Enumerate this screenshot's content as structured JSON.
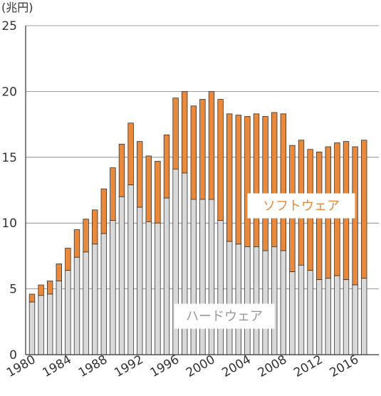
{
  "chart_data": {
    "type": "bar",
    "stacked": true,
    "unit_label": "(兆円)",
    "x": [
      1980,
      1981,
      1982,
      1983,
      1984,
      1985,
      1986,
      1987,
      1988,
      1989,
      1990,
      1991,
      1992,
      1993,
      1994,
      1995,
      1996,
      1997,
      1998,
      1999,
      2000,
      2001,
      2002,
      2003,
      2004,
      2005,
      2006,
      2007,
      2008,
      2009,
      2010,
      2011,
      2012,
      2013,
      2014,
      2015,
      2016,
      2017
    ],
    "x_tick_labels": [
      "1980",
      "1984",
      "1988",
      "1992",
      "1996",
      "2000",
      "2004",
      "2008",
      "2012",
      "2016"
    ],
    "y_ticks": [
      0,
      5,
      10,
      15,
      20,
      25
    ],
    "ylim": [
      0,
      25
    ],
    "grid": true,
    "series": [
      {
        "name": "ハードウェア",
        "color": "#d9d9d9",
        "values": [
          4.0,
          4.5,
          4.6,
          5.6,
          6.4,
          7.4,
          7.8,
          8.4,
          9.2,
          10.2,
          12.0,
          12.9,
          11.2,
          10.1,
          10.0,
          11.9,
          14.1,
          13.8,
          11.8,
          11.8,
          11.8,
          10.2,
          8.6,
          8.4,
          8.2,
          8.2,
          7.9,
          8.2,
          7.9,
          6.3,
          6.8,
          6.4,
          5.7,
          5.8,
          6.0,
          5.7,
          5.3,
          5.8
        ]
      },
      {
        "name": "ソフトウェア",
        "color": "#e8893b",
        "values": [
          0.6,
          0.8,
          1.0,
          1.3,
          1.7,
          2.1,
          2.5,
          2.6,
          3.4,
          4.0,
          4.0,
          4.7,
          5.0,
          5.0,
          4.7,
          4.8,
          5.4,
          6.2,
          7.1,
          7.6,
          8.2,
          9.2,
          9.7,
          9.8,
          9.9,
          10.1,
          10.2,
          10.2,
          10.4,
          9.6,
          9.5,
          9.2,
          9.7,
          10.0,
          10.1,
          10.5,
          10.5,
          10.5
        ]
      }
    ]
  },
  "colors": {
    "axis": "#333333",
    "grid": "#7f7f7f",
    "bar_outline": "#333333",
    "software_label_text": "#e8893b",
    "hardware_label_text": "#999999",
    "label_box_background": "#ffffff"
  }
}
